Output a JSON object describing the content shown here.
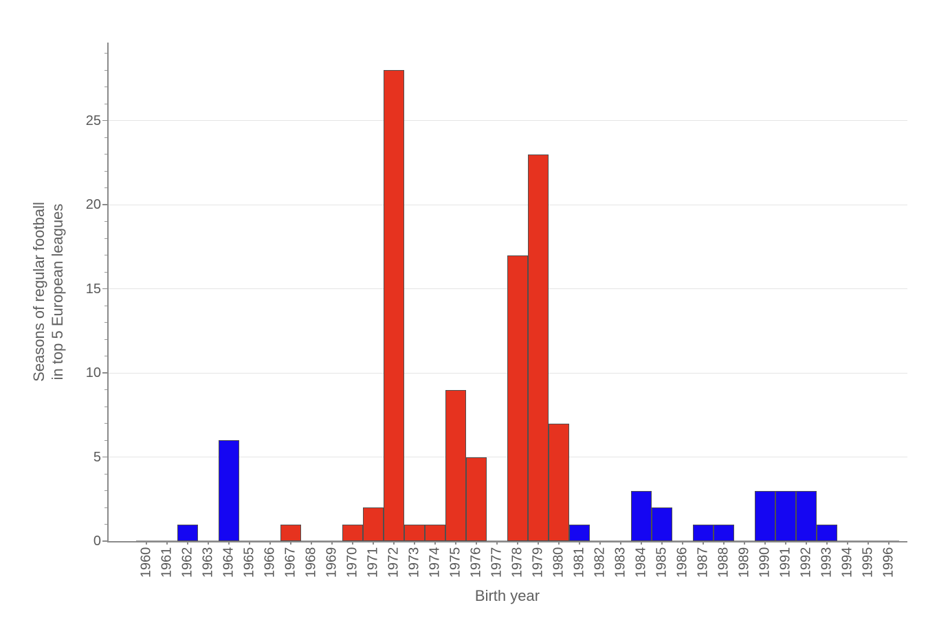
{
  "chart_data": {
    "type": "bar",
    "title": "",
    "xlabel": "Birth year",
    "ylabel_lines": [
      "Seasons of regular football",
      "in top 5 European leagues"
    ],
    "ylabel": "Seasons of regular football in top 5 European leagues",
    "yticks": [
      0,
      5,
      10,
      15,
      20,
      25
    ],
    "ylim": [
      0,
      29.6
    ],
    "grid": "horizontal",
    "legend": null,
    "colors": {
      "red": "#e6331f",
      "blue": "#1506f2",
      "bar_edge": "#4f4f4f",
      "axis": "#8a8a8a",
      "gridline": "#e5e5e5",
      "tick_text": "#595959",
      "axis_title_text": "#5f5f5f",
      "background": "#ffffff"
    },
    "bars": [
      {
        "year": 1960,
        "value": 0,
        "group": "none"
      },
      {
        "year": 1961,
        "value": 0,
        "group": "none"
      },
      {
        "year": 1962,
        "value": 1,
        "group": "blue"
      },
      {
        "year": 1963,
        "value": 0,
        "group": "none"
      },
      {
        "year": 1964,
        "value": 6,
        "group": "blue"
      },
      {
        "year": 1965,
        "value": 0,
        "group": "none"
      },
      {
        "year": 1966,
        "value": 0,
        "group": "none"
      },
      {
        "year": 1967,
        "value": 1,
        "group": "red"
      },
      {
        "year": 1968,
        "value": 0,
        "group": "none"
      },
      {
        "year": 1969,
        "value": 0,
        "group": "none"
      },
      {
        "year": 1970,
        "value": 1,
        "group": "red"
      },
      {
        "year": 1971,
        "value": 2,
        "group": "red"
      },
      {
        "year": 1972,
        "value": 28,
        "group": "red"
      },
      {
        "year": 1973,
        "value": 1,
        "group": "red"
      },
      {
        "year": 1974,
        "value": 1,
        "group": "red"
      },
      {
        "year": 1975,
        "value": 9,
        "group": "red"
      },
      {
        "year": 1976,
        "value": 5,
        "group": "red"
      },
      {
        "year": 1977,
        "value": 0,
        "group": "none"
      },
      {
        "year": 1978,
        "value": 17,
        "group": "red"
      },
      {
        "year": 1979,
        "value": 23,
        "group": "red"
      },
      {
        "year": 1980,
        "value": 7,
        "group": "red"
      },
      {
        "year": 1981,
        "value": 1,
        "group": "blue"
      },
      {
        "year": 1982,
        "value": 0,
        "group": "none"
      },
      {
        "year": 1983,
        "value": 0,
        "group": "none"
      },
      {
        "year": 1984,
        "value": 3,
        "group": "blue"
      },
      {
        "year": 1985,
        "value": 2,
        "group": "blue"
      },
      {
        "year": 1986,
        "value": 0,
        "group": "none"
      },
      {
        "year": 1987,
        "value": 1,
        "group": "blue"
      },
      {
        "year": 1988,
        "value": 1,
        "group": "blue"
      },
      {
        "year": 1989,
        "value": 0,
        "group": "none"
      },
      {
        "year": 1990,
        "value": 3,
        "group": "blue"
      },
      {
        "year": 1991,
        "value": 3,
        "group": "blue"
      },
      {
        "year": 1992,
        "value": 3,
        "group": "blue"
      },
      {
        "year": 1993,
        "value": 1,
        "group": "blue"
      },
      {
        "year": 1994,
        "value": 0,
        "group": "none"
      },
      {
        "year": 1995,
        "value": 0,
        "group": "none"
      },
      {
        "year": 1996,
        "value": 0,
        "group": "none"
      }
    ]
  }
}
